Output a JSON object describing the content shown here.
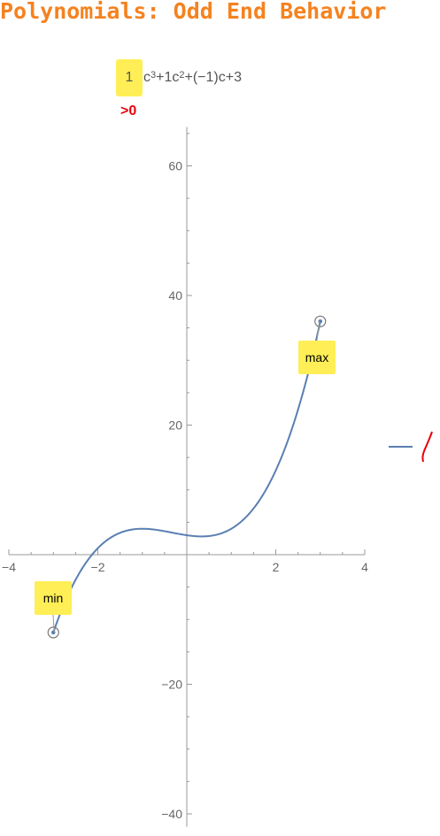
{
  "title": "Polynomials: Odd End Behavior",
  "formula": {
    "coefficient": "1",
    "term1": "c",
    "exp1": "3",
    "term2": "+1c",
    "exp2": "2",
    "rest": "+(−1)c+3",
    "sign_label": ">0"
  },
  "chart_data": {
    "type": "line",
    "function": "x^3 + x^2 - x + 3",
    "coefficients": [
      1,
      1,
      -1,
      3
    ],
    "xlim": [
      -4,
      4
    ],
    "ylim": [
      -42,
      66
    ],
    "x_domain": [
      -3,
      3
    ],
    "x_ticks": [
      {
        "value": -4,
        "label": "−4"
      },
      {
        "value": -2,
        "label": "−2"
      },
      {
        "value": 2,
        "label": "2"
      },
      {
        "value": 4,
        "label": "4"
      }
    ],
    "y_ticks": [
      {
        "value": -40,
        "label": "−40"
      },
      {
        "value": -20,
        "label": "−20"
      },
      {
        "value": 20,
        "label": "20"
      },
      {
        "value": 40,
        "label": "40"
      },
      {
        "value": 60,
        "label": "60"
      }
    ],
    "endpoints": [
      {
        "name": "min",
        "x": -3,
        "y": -12
      },
      {
        "name": "max",
        "x": 3,
        "y": 36
      }
    ],
    "line_color": "#5a7fb2",
    "label_color": "#ffee55",
    "legend_squiggle_color": "#e8000b"
  }
}
